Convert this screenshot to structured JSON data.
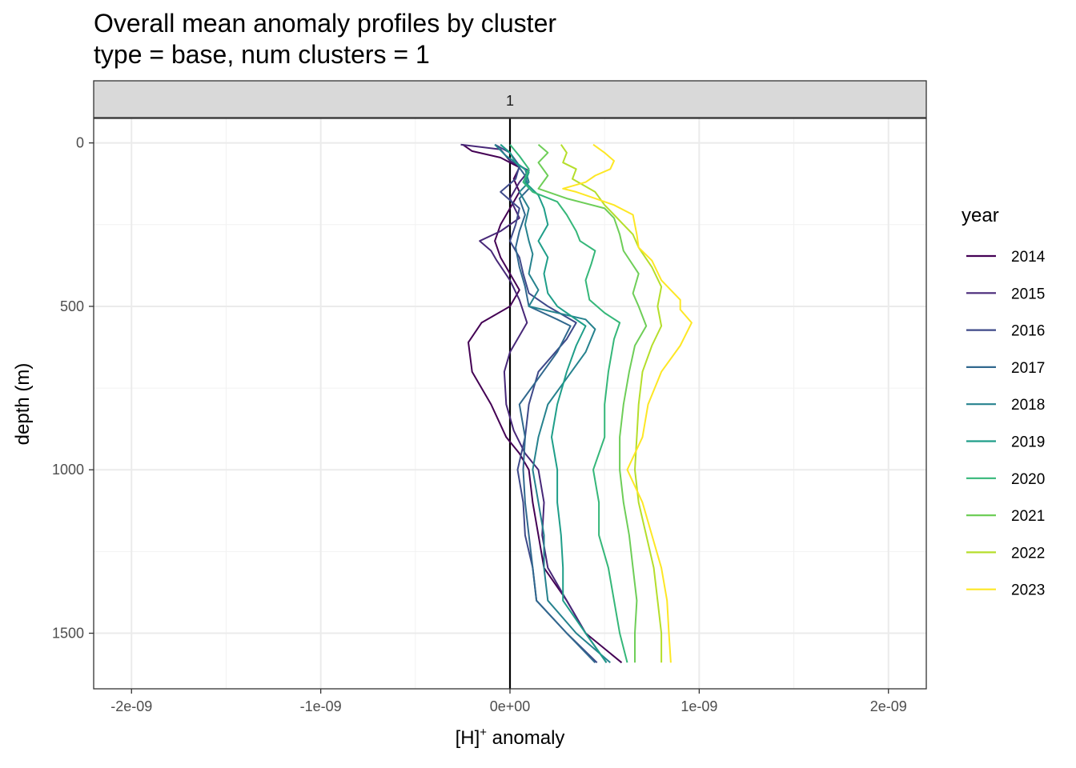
{
  "chart_data": {
    "type": "line",
    "title": "Overall mean anomaly profiles by cluster",
    "subtitle": "type = base, num clusters = 1",
    "facet_label": "1",
    "xlabel_base": "[H]",
    "xlabel_sup": "+",
    "xlabel_rest": " anomaly",
    "ylabel": "depth (m)",
    "xlim": [
      -2.2e-09,
      2.2e-09
    ],
    "ylim": [
      1670,
      -75
    ],
    "x_ticks": [
      -2e-09,
      -1e-09,
      0,
      1e-09,
      2e-09
    ],
    "x_tick_labels": [
      "-2e-09",
      "-1e-09",
      "0e+00",
      "1e-09",
      "2e-09"
    ],
    "y_ticks": [
      0,
      500,
      1000,
      1500
    ],
    "y_tick_labels": [
      "0",
      "500",
      "1000",
      "1500"
    ],
    "vline_x": 0,
    "legend_title": "year",
    "legend_position": "right",
    "series": [
      {
        "name": "2014",
        "color": "#440154",
        "points": [
          [
            -2.5e-10,
            5
          ],
          [
            -2e-10,
            25
          ],
          [
            -5e-11,
            45
          ],
          [
            5e-11,
            75
          ],
          [
            2e-11,
            110
          ],
          [
            5e-11,
            150
          ],
          [
            0.0,
            200
          ],
          [
            -5e-11,
            250
          ],
          [
            -8e-11,
            300
          ],
          [
            -5e-11,
            350
          ],
          [
            0.0,
            400
          ],
          [
            5e-11,
            450
          ],
          [
            0.0,
            500
          ],
          [
            -1.5e-10,
            550
          ],
          [
            -2.2e-10,
            610
          ],
          [
            -2e-10,
            700
          ],
          [
            -1e-10,
            800
          ],
          [
            -2e-11,
            900
          ],
          [
            5e-11,
            950
          ],
          [
            1e-10,
            1000
          ],
          [
            1.2e-10,
            1100
          ],
          [
            1.5e-10,
            1200
          ],
          [
            1.8e-10,
            1300
          ],
          [
            3e-10,
            1400
          ],
          [
            4e-10,
            1500
          ],
          [
            5.9e-10,
            1590
          ]
        ]
      },
      {
        "name": "2015",
        "color": "#482878",
        "points": [
          [
            -2.6e-10,
            5
          ],
          [
            -5e-11,
            20
          ],
          [
            0.0,
            55
          ],
          [
            1e-10,
            85
          ],
          [
            5e-11,
            120
          ],
          [
            0.0,
            170
          ],
          [
            5e-11,
            230
          ],
          [
            -5e-11,
            270
          ],
          [
            -1.6e-10,
            300
          ],
          [
            -1e-10,
            330
          ],
          [
            -7e-11,
            360
          ],
          [
            0.0,
            420
          ],
          [
            5e-11,
            480
          ],
          [
            9e-11,
            550
          ],
          [
            0.0,
            640
          ],
          [
            -3e-11,
            700
          ],
          [
            -2e-11,
            800
          ],
          [
            2e-11,
            880
          ],
          [
            8e-11,
            950
          ],
          [
            1.5e-10,
            1000
          ],
          [
            1.8e-10,
            1100
          ],
          [
            1.7e-10,
            1200
          ],
          [
            2e-10,
            1300
          ],
          [
            3e-10,
            1400
          ],
          [
            4e-10,
            1500
          ],
          [
            5.1e-10,
            1590
          ]
        ]
      },
      {
        "name": "2016",
        "color": "#3e4989",
        "points": [
          [
            -8e-11,
            5
          ],
          [
            0.0,
            30
          ],
          [
            5e-11,
            70
          ],
          [
            3e-11,
            110
          ],
          [
            -5e-11,
            150
          ],
          [
            5e-11,
            200
          ],
          [
            3e-11,
            250
          ],
          [
            0.0,
            300
          ],
          [
            5e-11,
            350
          ],
          [
            7e-11,
            400
          ],
          [
            1e-10,
            460
          ],
          [
            2e-10,
            500
          ],
          [
            3.5e-10,
            550
          ],
          [
            3e-10,
            600
          ],
          [
            1.5e-10,
            700
          ],
          [
            1e-10,
            800
          ],
          [
            8e-11,
            900
          ],
          [
            4e-11,
            1000
          ],
          [
            7e-11,
            1100
          ],
          [
            8e-11,
            1200
          ],
          [
            1.2e-10,
            1300
          ],
          [
            1.4e-10,
            1400
          ],
          [
            3e-10,
            1500
          ],
          [
            4.6e-10,
            1590
          ]
        ]
      },
      {
        "name": "2017",
        "color": "#31688e",
        "points": [
          [
            -5e-11,
            5
          ],
          [
            0.0,
            30
          ],
          [
            3e-11,
            60
          ],
          [
            8e-11,
            100
          ],
          [
            1e-10,
            140
          ],
          [
            5e-11,
            170
          ],
          [
            8e-11,
            220
          ],
          [
            5e-11,
            270
          ],
          [
            3e-11,
            320
          ],
          [
            5e-11,
            380
          ],
          [
            8e-11,
            440
          ],
          [
            1e-10,
            500
          ],
          [
            2.5e-10,
            540
          ],
          [
            3.2e-10,
            560
          ],
          [
            2.5e-10,
            640
          ],
          [
            1.5e-10,
            720
          ],
          [
            5e-11,
            800
          ],
          [
            8e-11,
            900
          ],
          [
            7e-11,
            1000
          ],
          [
            8e-11,
            1100
          ],
          [
            1e-10,
            1200
          ],
          [
            1.2e-10,
            1300
          ],
          [
            1.4e-10,
            1400
          ],
          [
            3e-10,
            1500
          ],
          [
            4.5e-10,
            1590
          ]
        ]
      },
      {
        "name": "2018",
        "color": "#26828e",
        "points": [
          [
            -8e-11,
            5
          ],
          [
            -2e-11,
            40
          ],
          [
            8e-11,
            80
          ],
          [
            1e-10,
            120
          ],
          [
            5e-11,
            150
          ],
          [
            1e-10,
            200
          ],
          [
            8e-11,
            250
          ],
          [
            1e-10,
            300
          ],
          [
            1.2e-10,
            340
          ],
          [
            1e-10,
            400
          ],
          [
            1.5e-10,
            450
          ],
          [
            1e-10,
            500
          ],
          [
            4e-10,
            540
          ],
          [
            4.5e-10,
            570
          ],
          [
            4e-10,
            640
          ],
          [
            3e-10,
            720
          ],
          [
            2e-10,
            800
          ],
          [
            1.5e-10,
            900
          ],
          [
            1.2e-10,
            1000
          ],
          [
            1.5e-10,
            1100
          ],
          [
            1.8e-10,
            1200
          ],
          [
            1.8e-10,
            1300
          ],
          [
            2e-10,
            1400
          ],
          [
            3.5e-10,
            1500
          ],
          [
            5.3e-10,
            1590
          ]
        ]
      },
      {
        "name": "2019",
        "color": "#1f9e89",
        "points": [
          [
            -5e-11,
            5
          ],
          [
            0.0,
            30
          ],
          [
            3e-11,
            60
          ],
          [
            1e-10,
            90
          ],
          [
            8e-11,
            120
          ],
          [
            1.5e-10,
            160
          ],
          [
            1.8e-10,
            200
          ],
          [
            2e-10,
            250
          ],
          [
            1.5e-10,
            300
          ],
          [
            2e-10,
            350
          ],
          [
            1.8e-10,
            400
          ],
          [
            2e-10,
            460
          ],
          [
            2.5e-10,
            500
          ],
          [
            4e-10,
            560
          ],
          [
            3.5e-10,
            620
          ],
          [
            3e-10,
            700
          ],
          [
            2.5e-10,
            800
          ],
          [
            2.2e-10,
            900
          ],
          [
            2.5e-10,
            1000
          ],
          [
            2.5e-10,
            1100
          ],
          [
            2.7e-10,
            1200
          ],
          [
            2.8e-10,
            1300
          ],
          [
            2.8e-10,
            1400
          ],
          [
            4e-10,
            1500
          ],
          [
            5.1e-10,
            1590
          ]
        ]
      },
      {
        "name": "2020",
        "color": "#35b779",
        "points": [
          [
            0.0,
            5
          ],
          [
            5e-11,
            40
          ],
          [
            1e-10,
            80
          ],
          [
            7e-11,
            120
          ],
          [
            1.2e-10,
            150
          ],
          [
            2.5e-10,
            180
          ],
          [
            3e-10,
            220
          ],
          [
            3.5e-10,
            270
          ],
          [
            3.7e-10,
            300
          ],
          [
            4.5e-10,
            330
          ],
          [
            4.3e-10,
            370
          ],
          [
            4e-10,
            420
          ],
          [
            4.2e-10,
            480
          ],
          [
            5e-10,
            520
          ],
          [
            5.8e-10,
            550
          ],
          [
            5.5e-10,
            600
          ],
          [
            5.2e-10,
            700
          ],
          [
            5e-10,
            800
          ],
          [
            5e-10,
            900
          ],
          [
            4.4e-10,
            1000
          ],
          [
            4.7e-10,
            1100
          ],
          [
            4.7e-10,
            1200
          ],
          [
            5.2e-10,
            1300
          ],
          [
            5.5e-10,
            1400
          ],
          [
            5.8e-10,
            1500
          ],
          [
            6.2e-10,
            1590
          ]
        ]
      },
      {
        "name": "2021",
        "color": "#6ece58",
        "points": [
          [
            1.5e-10,
            5
          ],
          [
            2e-10,
            30
          ],
          [
            1.5e-10,
            60
          ],
          [
            2e-10,
            100
          ],
          [
            1.5e-10,
            140
          ],
          [
            3e-10,
            170
          ],
          [
            5e-10,
            200
          ],
          [
            5.5e-10,
            230
          ],
          [
            5.8e-10,
            280
          ],
          [
            6e-10,
            330
          ],
          [
            6.8e-10,
            400
          ],
          [
            6.5e-10,
            460
          ],
          [
            6.8e-10,
            500
          ],
          [
            7.2e-10,
            560
          ],
          [
            6.6e-10,
            620
          ],
          [
            6.3e-10,
            700
          ],
          [
            6e-10,
            800
          ],
          [
            5.8e-10,
            900
          ],
          [
            5.8e-10,
            1000
          ],
          [
            6e-10,
            1100
          ],
          [
            6.3e-10,
            1200
          ],
          [
            6.5e-10,
            1300
          ],
          [
            6.7e-10,
            1400
          ],
          [
            6.6e-10,
            1500
          ],
          [
            6.6e-10,
            1590
          ]
        ]
      },
      {
        "name": "2022",
        "color": "#b5de2b",
        "points": [
          [
            2.7e-10,
            5
          ],
          [
            3e-10,
            30
          ],
          [
            2.8e-10,
            60
          ],
          [
            3.5e-10,
            80
          ],
          [
            3.3e-10,
            110
          ],
          [
            4.5e-10,
            150
          ],
          [
            5e-10,
            190
          ],
          [
            5.5e-10,
            220
          ],
          [
            6e-10,
            250
          ],
          [
            6.5e-10,
            280
          ],
          [
            6.8e-10,
            320
          ],
          [
            7.5e-10,
            380
          ],
          [
            8e-10,
            440
          ],
          [
            7.8e-10,
            500
          ],
          [
            8e-10,
            560
          ],
          [
            7.5e-10,
            620
          ],
          [
            7e-10,
            700
          ],
          [
            6.8e-10,
            800
          ],
          [
            6.7e-10,
            900
          ],
          [
            6.6e-10,
            1000
          ],
          [
            6.8e-10,
            1100
          ],
          [
            7.2e-10,
            1200
          ],
          [
            7.6e-10,
            1300
          ],
          [
            7.8e-10,
            1400
          ],
          [
            8e-10,
            1500
          ],
          [
            8e-10,
            1590
          ]
        ]
      },
      {
        "name": "2023",
        "color": "#fde725",
        "points": [
          [
            4.4e-10,
            5
          ],
          [
            5e-10,
            30
          ],
          [
            5.5e-10,
            55
          ],
          [
            5.3e-10,
            80
          ],
          [
            4.5e-10,
            100
          ],
          [
            4e-10,
            120
          ],
          [
            2.8e-10,
            140
          ],
          [
            3.5e-10,
            150
          ],
          [
            4.5e-10,
            170
          ],
          [
            5.5e-10,
            190
          ],
          [
            6.5e-10,
            220
          ],
          [
            6.7e-10,
            280
          ],
          [
            6.8e-10,
            320
          ],
          [
            7.5e-10,
            360
          ],
          [
            8e-10,
            420
          ],
          [
            9e-10,
            480
          ],
          [
            9e-10,
            510
          ],
          [
            9.6e-10,
            550
          ],
          [
            9e-10,
            620
          ],
          [
            8e-10,
            700
          ],
          [
            7.3e-10,
            800
          ],
          [
            7e-10,
            900
          ],
          [
            6.2e-10,
            1000
          ],
          [
            7e-10,
            1100
          ],
          [
            7.5e-10,
            1200
          ],
          [
            8e-10,
            1300
          ],
          [
            8.3e-10,
            1400
          ],
          [
            8.4e-10,
            1500
          ],
          [
            8.5e-10,
            1590
          ]
        ]
      }
    ]
  }
}
